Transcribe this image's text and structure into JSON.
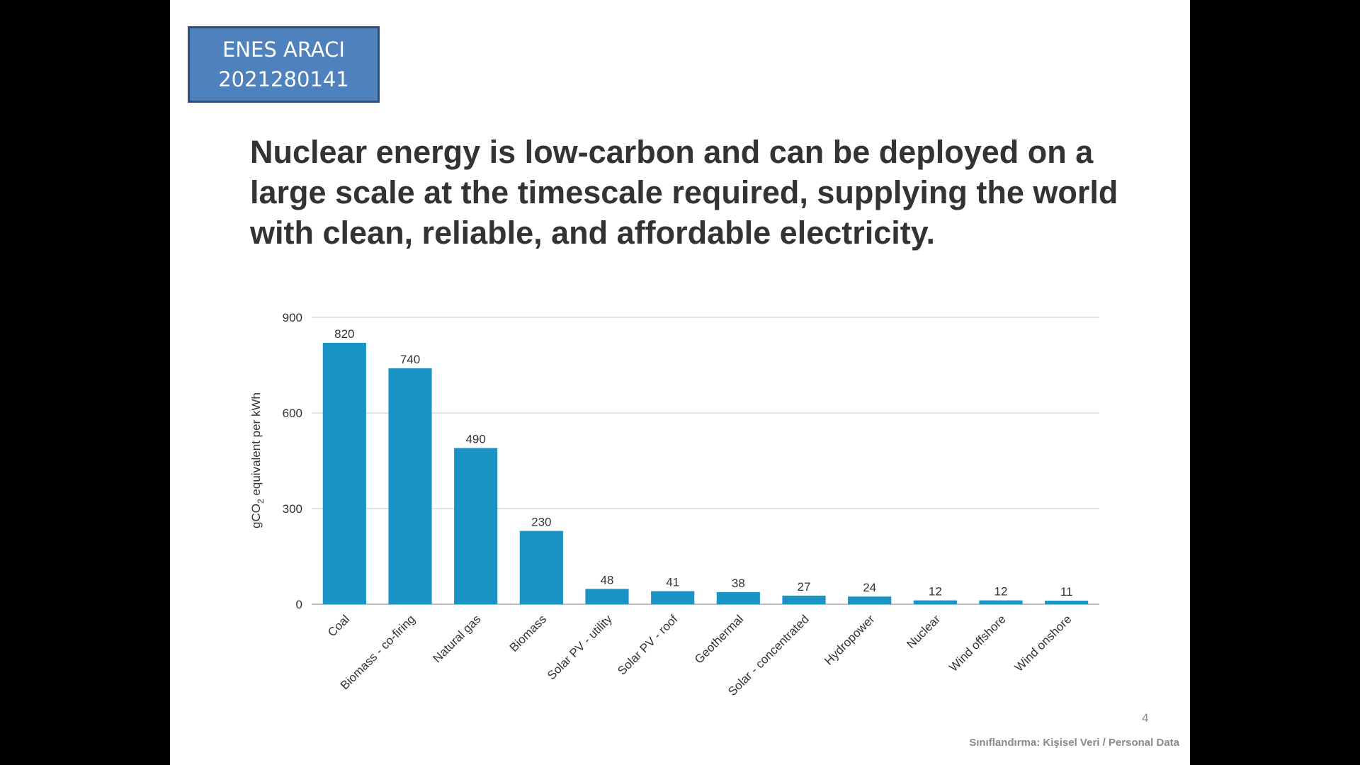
{
  "author": {
    "name": "ENES ARACI",
    "student_id": "2021280141"
  },
  "headline": "Nuclear energy is low-carbon and can be deployed on a large scale at the timescale required, supplying the world with clean, reliable, and affordable electricity.",
  "page_number": "4",
  "classification": "Sınıflandırma: Kişisel Veri / Personal Data",
  "colors": {
    "bar": "#1a94c4",
    "grid": "#d9d9d9",
    "name_box": "#4f81bd"
  },
  "chart_data": {
    "type": "bar",
    "categories": [
      "Coal",
      "Biomass - co-firing",
      "Natural gas",
      "Biomass",
      "Solar PV - utility",
      "Solar PV - roof",
      "Geothermal",
      "Solar - concentrated",
      "Hydropower",
      "Nuclear",
      "Wind offshore",
      "Wind onshore"
    ],
    "values": [
      820,
      740,
      490,
      230,
      48,
      41,
      38,
      27,
      24,
      12,
      12,
      11
    ],
    "title": "",
    "xlabel": "",
    "ylabel_main": "gCO",
    "ylabel_subscript": "2",
    "ylabel_rest": " equivalent per kWh",
    "ylim": [
      0,
      900
    ],
    "yticks": [
      0,
      300,
      600,
      900
    ],
    "grid": true,
    "data_labels": true
  }
}
